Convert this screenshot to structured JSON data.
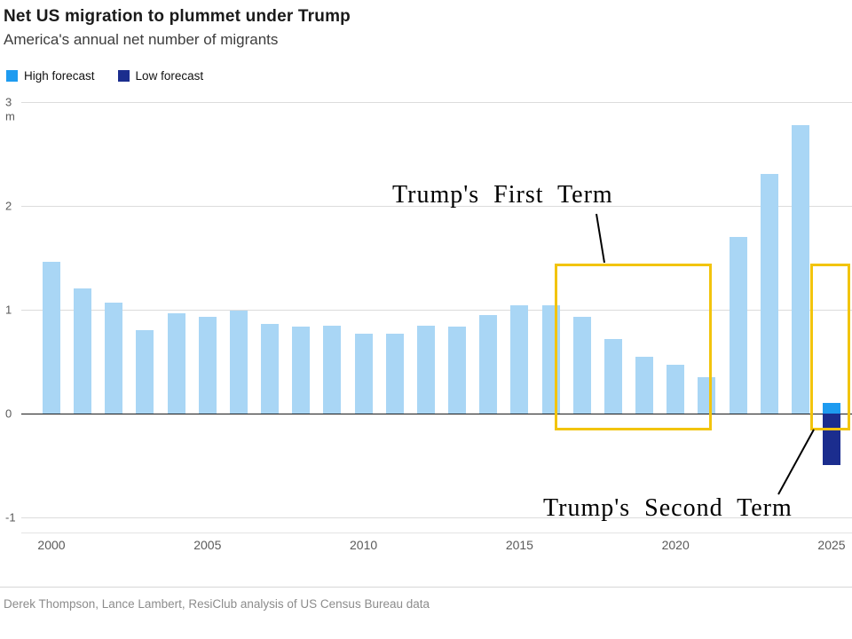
{
  "chart_data": {
    "type": "bar",
    "title": "Net US migration to plummet under Trump",
    "subtitle": "America's annual net number of migrants",
    "source": "Derek Thompson, Lance Lambert, ResiClub analysis of US Census Bureau data",
    "unit": "m",
    "legend": [
      {
        "label": "High forecast",
        "color": "#1e9bf0"
      },
      {
        "label": "Low forecast",
        "color": "#1b2d8e"
      }
    ],
    "ylim": [
      -1,
      3
    ],
    "yticks": [
      3,
      2,
      1,
      0,
      -1
    ],
    "xticks": [
      2000,
      2005,
      2010,
      2015,
      2020,
      2025
    ],
    "years": [
      2000,
      2001,
      2002,
      2003,
      2004,
      2005,
      2006,
      2007,
      2008,
      2009,
      2010,
      2011,
      2012,
      2013,
      2014,
      2015,
      2016,
      2017,
      2018,
      2019,
      2020,
      2021,
      2022,
      2023,
      2024
    ],
    "values": [
      1.46,
      1.21,
      1.07,
      0.8,
      0.97,
      0.93,
      0.99,
      0.86,
      0.84,
      0.85,
      0.77,
      0.77,
      0.85,
      0.84,
      0.95,
      1.04,
      1.04,
      0.93,
      0.72,
      0.55,
      0.47,
      0.35,
      1.7,
      2.31,
      2.78
    ],
    "forecast": {
      "year": 2025,
      "high": 0.1,
      "low": -0.5
    },
    "colors": {
      "historical": "#a9d6f5",
      "high": "#1e9bf0",
      "low": "#1b2d8e",
      "highlight": "#f2c40d"
    },
    "annotations": [
      {
        "label": "Trump's First Term"
      },
      {
        "label": "Trump's Second Term"
      }
    ]
  }
}
